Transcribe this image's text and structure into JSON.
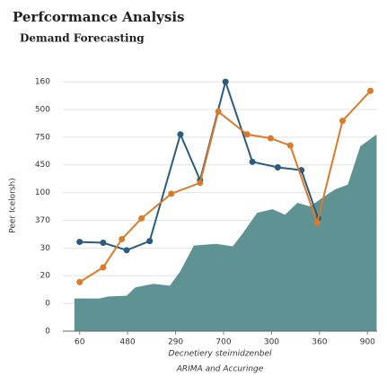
{
  "chart_data": {
    "type": "line",
    "title": "Perfcormance Analysis",
    "subtitle": "Demand Forecasting",
    "y_label": "Peer Icelorsh)",
    "x_label": "Decnetiery steimidzenbel",
    "legend_text": "ARIMA and Accuringe",
    "xlim": [
      -0.35,
      6.2
    ],
    "xticks": [
      0,
      1,
      2,
      3,
      4,
      5,
      6
    ],
    "xtick_labels": [
      "60",
      "480",
      "290",
      "700",
      "300",
      "360",
      "900"
    ],
    "ylim": [
      0,
      9.1
    ],
    "yticks": [
      9,
      8,
      7,
      6,
      5,
      4,
      3,
      2,
      1,
      0
    ],
    "ytick_labels": [
      "160",
      "500",
      "750",
      "450",
      "100",
      "370",
      "30",
      "20",
      "0",
      "0"
    ],
    "grid": true,
    "series": [
      {
        "kind": "area",
        "color": "#5f9393",
        "x": [
          -0.11,
          0.41,
          0.6,
          0.98,
          1.16,
          1.54,
          1.88,
          2.1,
          2.38,
          2.85,
          3.19,
          3.38,
          3.7,
          4.02,
          4.28,
          4.54,
          4.8,
          5.1,
          5.33,
          5.59,
          5.85,
          6.19
        ],
        "values": [
          1.18,
          1.18,
          1.25,
          1.28,
          1.58,
          1.71,
          1.64,
          2.17,
          3.09,
          3.15,
          3.06,
          3.48,
          4.27,
          4.4,
          4.2,
          4.63,
          4.5,
          4.86,
          5.12,
          5.29,
          6.67,
          7.1
        ]
      },
      {
        "kind": "line",
        "color": "#2b5c7f",
        "x": [
          0,
          0.49,
          0.98,
          1.46,
          2.1,
          2.51,
          3.04,
          3.6,
          4.13,
          4.62,
          4.97
        ],
        "values": [
          3.22,
          3.19,
          2.92,
          3.25,
          7.1,
          5.45,
          9.0,
          6.11,
          5.91,
          5.81,
          4.07
        ]
      },
      {
        "kind": "line",
        "color": "#d97b2b",
        "x": [
          0,
          0.49,
          0.88,
          1.29,
          1.91,
          2.51,
          2.89,
          3.49,
          3.98,
          4.39,
          4.95,
          5.48,
          6.06
        ],
        "values": [
          1.77,
          2.3,
          3.32,
          4.07,
          4.96,
          5.35,
          7.92,
          7.1,
          6.96,
          6.7,
          3.91,
          7.59,
          8.67
        ]
      }
    ]
  }
}
